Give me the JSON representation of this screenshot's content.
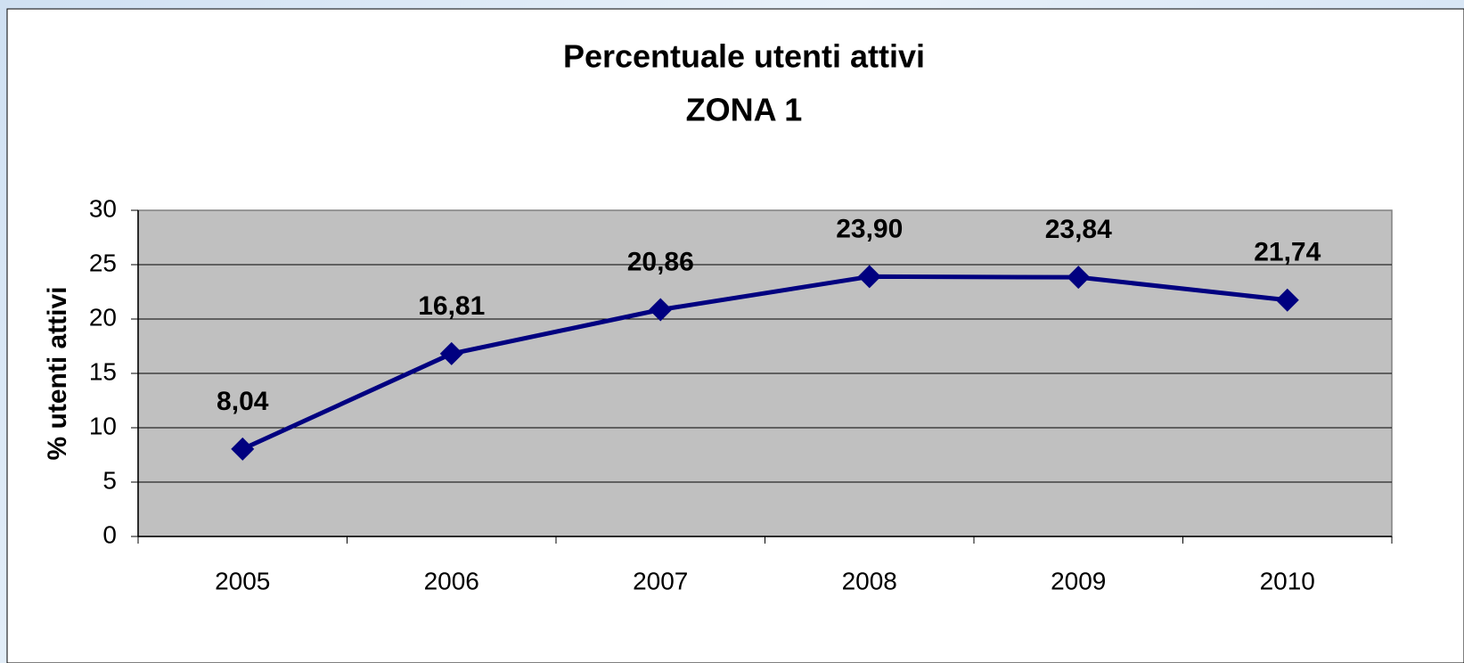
{
  "chart_data": {
    "type": "line",
    "title": "Percentuale utenti attivi",
    "subtitle": "ZONA 1",
    "y_label": "% utenti attivi",
    "categories": [
      "2005",
      "2006",
      "2007",
      "2008",
      "2009",
      "2010"
    ],
    "series": [
      {
        "name": "% utenti attivi",
        "color": "#000080",
        "values": [
          8.04,
          16.81,
          20.86,
          23.9,
          23.84,
          21.74
        ],
        "value_labels": [
          "8,04",
          "16,81",
          "20,86",
          "23,90",
          "23,84",
          "21,74"
        ]
      }
    ],
    "ylim": [
      0,
      30
    ],
    "yticks": [
      0,
      5,
      10,
      15,
      20,
      25,
      30
    ],
    "grid": true,
    "plot_background": "#c0c0c0"
  }
}
